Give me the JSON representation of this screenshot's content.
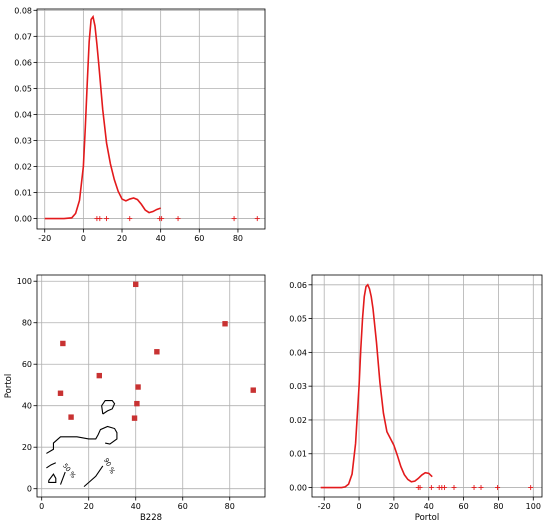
{
  "colors": {
    "accent": "#e31a1c",
    "marker": "#c83232",
    "grid": "#b0b0b0"
  },
  "chart_data": [
    {
      "id": "b228_density",
      "type": "line",
      "title": "",
      "xlabel": "",
      "ylabel": "",
      "xlim": [
        -24,
        94
      ],
      "ylim": [
        -0.004,
        0.0805
      ],
      "xticks": [
        -20,
        0,
        20,
        40,
        60,
        80
      ],
      "yticks": [
        0.0,
        0.01,
        0.02,
        0.03,
        0.04,
        0.05,
        0.06,
        0.07,
        0.08
      ],
      "grid": true,
      "series": [
        {
          "x": [
            -20,
            -10,
            -6,
            -4,
            -2,
            0,
            1,
            2,
            3,
            4,
            5,
            6,
            7,
            8,
            10,
            12,
            14,
            16,
            18,
            20,
            22,
            24,
            26,
            28,
            30,
            32,
            34,
            36,
            38,
            40
          ],
          "y": [
            0.0,
            0.0,
            0.0003,
            0.002,
            0.007,
            0.02,
            0.035,
            0.052,
            0.068,
            0.0765,
            0.0775,
            0.074,
            0.067,
            0.059,
            0.042,
            0.029,
            0.021,
            0.015,
            0.0105,
            0.0075,
            0.0068,
            0.0075,
            0.0079,
            0.0073,
            0.0055,
            0.0033,
            0.0023,
            0.0027,
            0.0035,
            0.004
          ]
        }
      ],
      "rug": [
        7,
        8.5,
        12,
        24,
        39.5,
        40.5,
        49,
        78,
        90
      ]
    },
    {
      "id": "scatter_contour",
      "type": "scatter",
      "title": "",
      "xlabel": "B228",
      "ylabel": "Portol",
      "xlim": [
        -2,
        95
      ],
      "ylim": [
        -4,
        103
      ],
      "xticks": [
        0,
        20,
        40,
        60,
        80
      ],
      "yticks": [
        0,
        20,
        40,
        60,
        80,
        100
      ],
      "grid": true,
      "points": [
        {
          "x": 40,
          "y": 98.5
        },
        {
          "x": 78,
          "y": 79.5
        },
        {
          "x": 9,
          "y": 70
        },
        {
          "x": 49,
          "y": 66
        },
        {
          "x": 24.5,
          "y": 54.5
        },
        {
          "x": 41,
          "y": 49
        },
        {
          "x": 8,
          "y": 46
        },
        {
          "x": 90,
          "y": 47.5
        },
        {
          "x": 40.5,
          "y": 41
        },
        {
          "x": 12.5,
          "y": 34.5
        },
        {
          "x": 39.5,
          "y": 34
        }
      ],
      "contours": [
        {
          "label": "50 %",
          "paths": [
            [
              [
                3,
                4
              ],
              [
                5,
                7
              ],
              [
                6,
                5
              ],
              [
                6,
                3
              ],
              [
                3,
                3
              ],
              [
                3,
                4
              ]
            ],
            [
              [
                2,
                10
              ],
              [
                4,
                11.5
              ],
              [
                6,
                12.5
              ]
            ],
            [
              [
                8,
                2
              ],
              [
                9,
                5
              ],
              [
                10,
                8
              ]
            ]
          ]
        },
        {
          "label": "90 %",
          "paths": [
            [
              [
                2,
                17
              ],
              [
                5,
                19
              ],
              [
                5,
                22
              ],
              [
                8,
                25
              ],
              [
                15,
                25
              ],
              [
                20,
                24
              ],
              [
                23,
                24
              ],
              [
                24,
                26
              ],
              [
                25,
                28.5
              ],
              [
                28,
                30
              ],
              [
                31,
                29
              ],
              [
                32,
                27
              ],
              [
                32,
                24
              ],
              [
                29,
                21.5
              ],
              [
                27,
                22
              ]
            ],
            [
              [
                26,
                36
              ],
              [
                28,
                37.5
              ],
              [
                30,
                38.5
              ],
              [
                31,
                41
              ],
              [
                30,
                42.5
              ],
              [
                27,
                42.5
              ],
              [
                25.5,
                40
              ],
              [
                26,
                36
              ]
            ],
            [
              [
                18,
                1
              ],
              [
                20,
                3
              ],
              [
                23,
                6
              ],
              [
                26,
                11
              ]
            ]
          ]
        }
      ]
    },
    {
      "id": "portol_density",
      "type": "line",
      "title": "",
      "xlabel": "Portol",
      "ylabel": "",
      "xlim": [
        -27,
        105
      ],
      "ylim": [
        -0.0028,
        0.0629
      ],
      "xticks": [
        -20,
        0,
        20,
        40,
        60,
        80,
        100
      ],
      "yticks": [
        0.0,
        0.01,
        0.02,
        0.03,
        0.04,
        0.05,
        0.06
      ],
      "grid": true,
      "series": [
        {
          "x": [
            -22,
            -10,
            -8,
            -6,
            -4,
            -2,
            0,
            1,
            2,
            3,
            4,
            5,
            6,
            7,
            8,
            10,
            12,
            14,
            16,
            18,
            20,
            22,
            24,
            26,
            28,
            30,
            32,
            34,
            36,
            38,
            40,
            42
          ],
          "y": [
            0.0,
            0.0,
            0.0002,
            0.001,
            0.004,
            0.013,
            0.03,
            0.041,
            0.05,
            0.0565,
            0.0595,
            0.06,
            0.0588,
            0.0565,
            0.053,
            0.043,
            0.031,
            0.022,
            0.0165,
            0.0145,
            0.0125,
            0.0095,
            0.0062,
            0.0038,
            0.0024,
            0.0017,
            0.0019,
            0.0027,
            0.0037,
            0.0044,
            0.0042,
            0.0032
          ]
        }
      ],
      "rug": [
        34,
        35,
        41.5,
        46,
        47.5,
        49,
        54.5,
        66,
        70,
        79.5,
        98.5
      ]
    }
  ]
}
